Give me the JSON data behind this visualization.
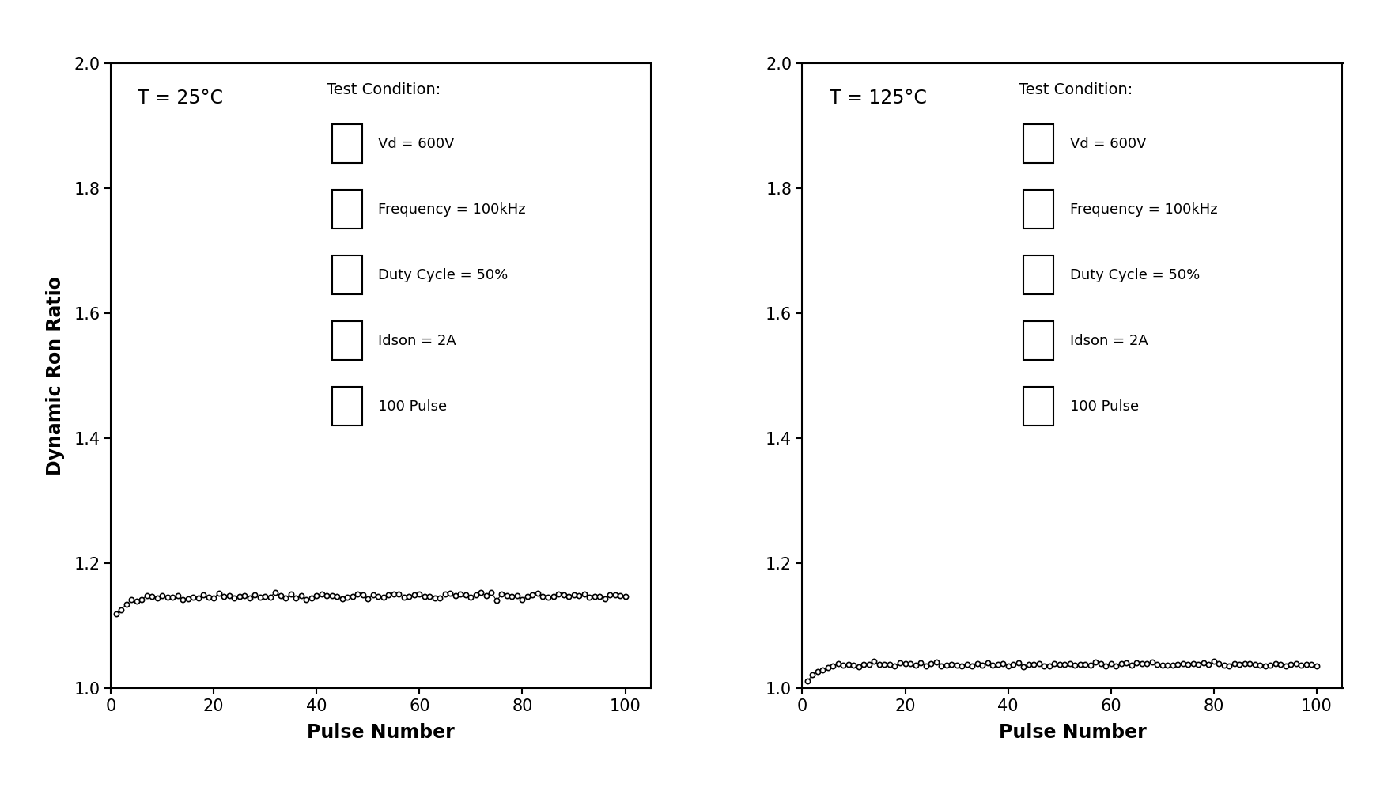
{
  "left_title": "T = 25°C",
  "right_title": "T = 125°C",
  "xlabel": "Pulse Number",
  "ylabel": "Dynamic Ron Ratio",
  "ylim": [
    1.0,
    2.0
  ],
  "xlim": [
    0,
    105
  ],
  "xticks": [
    0,
    20,
    40,
    60,
    80,
    100
  ],
  "yticks": [
    1.0,
    1.2,
    1.4,
    1.6,
    1.8,
    2.0
  ],
  "test_conditions": [
    "Vd = 600V",
    "Frequency = 100kHz",
    "Duty Cycle = 50%",
    "Idson = 2A",
    "100 Pulse"
  ],
  "test_conditions_title": "Test Condition:",
  "background_color": "#ffffff",
  "data_color": "#000000",
  "left_y_start": 1.105,
  "left_y_plateau": 1.148,
  "right_y_start": 1.002,
  "right_y_plateau": 1.038,
  "n_pulses": 100
}
